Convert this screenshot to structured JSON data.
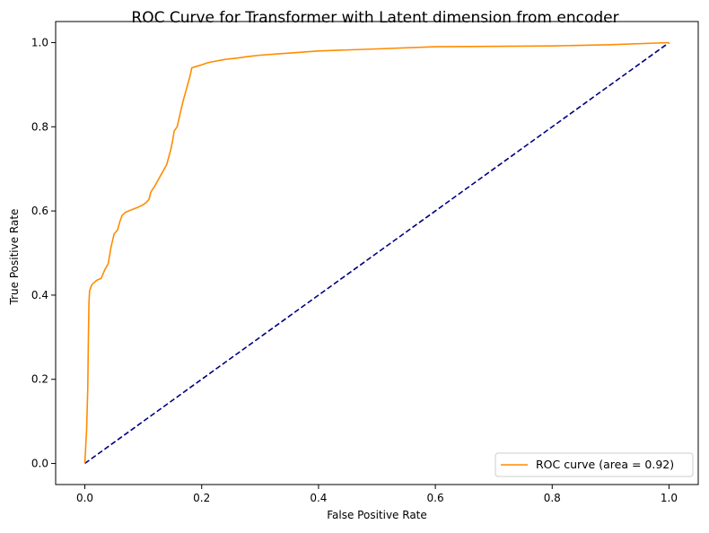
{
  "chart_data": {
    "type": "line",
    "title": "ROC Curve for Transformer with Latent dimension from encoder",
    "xlabel": "False Positive Rate",
    "ylabel": "True Positive Rate",
    "xlim": [
      -0.05,
      1.05
    ],
    "ylim": [
      -0.05,
      1.05
    ],
    "xticks": [
      0.0,
      0.2,
      0.4,
      0.6,
      0.8,
      1.0
    ],
    "xtick_labels": [
      "0.0",
      "0.2",
      "0.4",
      "0.6",
      "0.8",
      "1.0"
    ],
    "yticks": [
      0.0,
      0.2,
      0.4,
      0.6,
      0.8,
      1.0
    ],
    "ytick_labels": [
      "0.0",
      "0.2",
      "0.4",
      "0.6",
      "0.8",
      "1.0"
    ],
    "grid": false,
    "legend_position": "lower-right",
    "series": [
      {
        "name": "ROC curve (area = 0.92)",
        "color": "#ff8c00",
        "style": "solid",
        "points": [
          [
            0.0,
            0.0
          ],
          [
            0.003,
            0.08
          ],
          [
            0.005,
            0.18
          ],
          [
            0.006,
            0.3
          ],
          [
            0.007,
            0.38
          ],
          [
            0.008,
            0.41
          ],
          [
            0.012,
            0.425
          ],
          [
            0.02,
            0.435
          ],
          [
            0.028,
            0.44
          ],
          [
            0.034,
            0.46
          ],
          [
            0.04,
            0.475
          ],
          [
            0.045,
            0.515
          ],
          [
            0.05,
            0.545
          ],
          [
            0.056,
            0.555
          ],
          [
            0.06,
            0.575
          ],
          [
            0.064,
            0.59
          ],
          [
            0.07,
            0.597
          ],
          [
            0.08,
            0.603
          ],
          [
            0.09,
            0.608
          ],
          [
            0.1,
            0.615
          ],
          [
            0.105,
            0.62
          ],
          [
            0.11,
            0.628
          ],
          [
            0.113,
            0.645
          ],
          [
            0.12,
            0.66
          ],
          [
            0.13,
            0.685
          ],
          [
            0.14,
            0.71
          ],
          [
            0.147,
            0.745
          ],
          [
            0.15,
            0.765
          ],
          [
            0.153,
            0.79
          ],
          [
            0.158,
            0.8
          ],
          [
            0.163,
            0.83
          ],
          [
            0.168,
            0.86
          ],
          [
            0.172,
            0.88
          ],
          [
            0.176,
            0.9
          ],
          [
            0.18,
            0.92
          ],
          [
            0.183,
            0.94
          ],
          [
            0.19,
            0.943
          ],
          [
            0.2,
            0.947
          ],
          [
            0.21,
            0.952
          ],
          [
            0.22,
            0.955
          ],
          [
            0.24,
            0.96
          ],
          [
            0.26,
            0.963
          ],
          [
            0.28,
            0.967
          ],
          [
            0.3,
            0.97
          ],
          [
            0.33,
            0.973
          ],
          [
            0.36,
            0.976
          ],
          [
            0.4,
            0.98
          ],
          [
            0.5,
            0.985
          ],
          [
            0.6,
            0.99
          ],
          [
            0.8,
            0.992
          ],
          [
            0.9,
            0.995
          ],
          [
            1.0,
            1.0
          ]
        ]
      },
      {
        "name": "",
        "color": "#000080",
        "style": "dashed",
        "points": [
          [
            0.0,
            0.0
          ],
          [
            1.0,
            1.0
          ]
        ]
      }
    ]
  }
}
